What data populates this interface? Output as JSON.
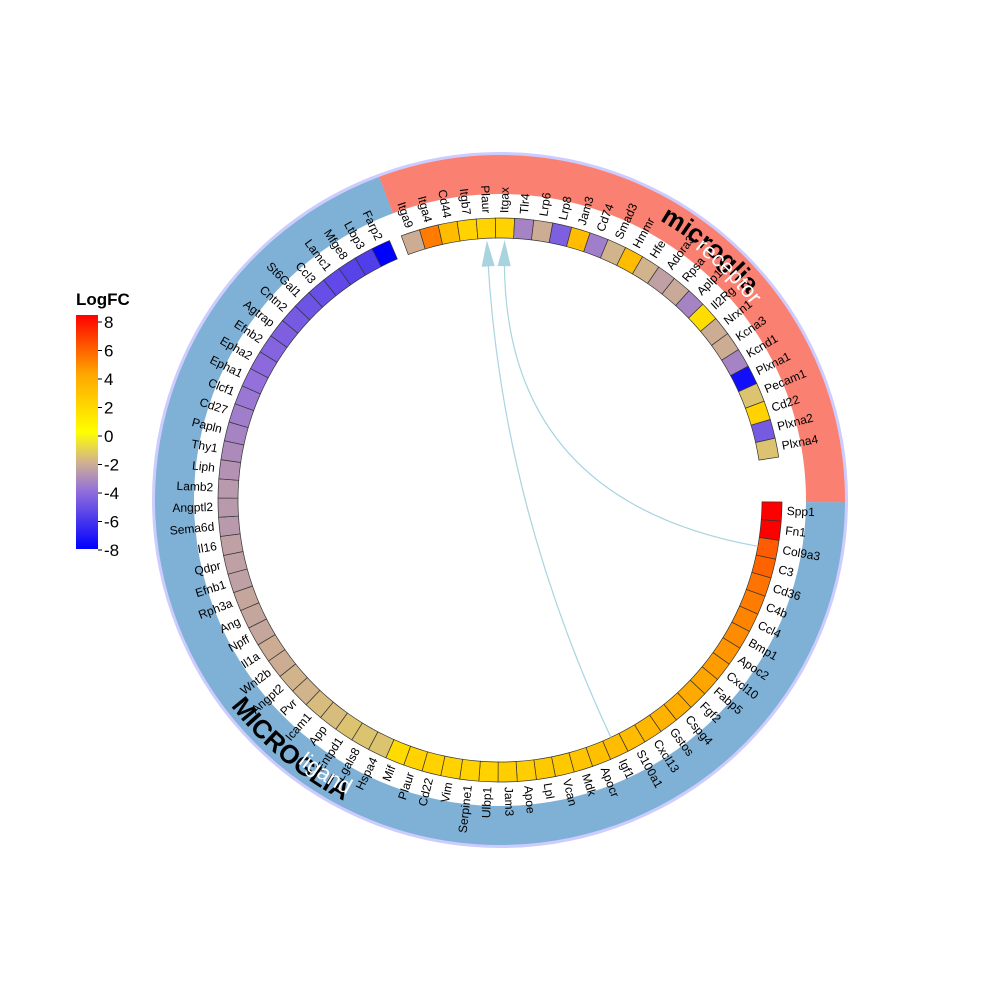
{
  "legend": {
    "title": "LogFC",
    "ticks": [
      "8",
      "6",
      "4",
      "2",
      "0",
      "-2",
      "-4",
      "-6",
      "-8"
    ],
    "gradient_stops": [
      {
        "value": 8,
        "color": "#ff0000"
      },
      {
        "value": 4,
        "color": "#ffa500"
      },
      {
        "value": 0,
        "color": "#ffff00"
      },
      {
        "value": -2,
        "color": "#d2b48c"
      },
      {
        "value": -4,
        "color": "#9370db"
      },
      {
        "value": -8,
        "color": "#0000ff"
      }
    ]
  },
  "outer_ring": {
    "color": "#ccccff",
    "labels": {
      "receptor_cell": "microglia",
      "ligand_cell": "MICROGLIA"
    }
  },
  "groups": {
    "receptor": {
      "label": "receptor",
      "color": "#fa8072"
    },
    "ligand": {
      "label": "ligand",
      "color": "#7fb0d5"
    }
  },
  "receptors": [
    {
      "gene": "Itga9",
      "logfc": -2.2
    },
    {
      "gene": "Itga4",
      "logfc": 5
    },
    {
      "gene": "Cd44",
      "logfc": 3
    },
    {
      "gene": "Itgb7",
      "logfc": 2
    },
    {
      "gene": "Plaur",
      "logfc": 2
    },
    {
      "gene": "Itgax",
      "logfc": 2
    },
    {
      "gene": "Tlr4",
      "logfc": -3.4
    },
    {
      "gene": "Lrp6",
      "logfc": -2.2
    },
    {
      "gene": "Lrp8",
      "logfc": -4.6
    },
    {
      "gene": "Jam3",
      "logfc": 3
    },
    {
      "gene": "Cd74",
      "logfc": -3.6
    },
    {
      "gene": "Smad3",
      "logfc": -2
    },
    {
      "gene": "Hmmr",
      "logfc": 3
    },
    {
      "gene": "Hfe",
      "logfc": -2
    },
    {
      "gene": "Adora3",
      "logfc": -2.6
    },
    {
      "gene": "Rpsa",
      "logfc": -2.3
    },
    {
      "gene": "Aplp1",
      "logfc": -3.4
    },
    {
      "gene": "Il2Rg",
      "logfc": 1.5
    },
    {
      "gene": "Nrxn1",
      "logfc": -2.2
    },
    {
      "gene": "Kcna3",
      "logfc": -2.2
    },
    {
      "gene": "Kcnd1",
      "logfc": -3.4
    },
    {
      "gene": "Plxna1",
      "logfc": -7.5
    },
    {
      "gene": "Pecam1",
      "logfc": -1.6
    },
    {
      "gene": "Cd22",
      "logfc": 2
    },
    {
      "gene": "Plxna2",
      "logfc": -4.8
    },
    {
      "gene": "Plxna4",
      "logfc": -1.6
    }
  ],
  "ligands": [
    {
      "gene": "Spp1",
      "logfc": 8
    },
    {
      "gene": "Fn1",
      "logfc": 8
    },
    {
      "gene": "Col9a3",
      "logfc": 5.8
    },
    {
      "gene": "C3",
      "logfc": 5.6
    },
    {
      "gene": "Cd36",
      "logfc": 5.2
    },
    {
      "gene": "C4b",
      "logfc": 5
    },
    {
      "gene": "Ccl4",
      "logfc": 4.8
    },
    {
      "gene": "Bmp1",
      "logfc": 4.6
    },
    {
      "gene": "Apoc2",
      "logfc": 4.4
    },
    {
      "gene": "Cxcl10",
      "logfc": 4.2
    },
    {
      "gene": "Fabp5",
      "logfc": 4
    },
    {
      "gene": "Fgf2",
      "logfc": 3.8
    },
    {
      "gene": "Cspg4",
      "logfc": 3.6
    },
    {
      "gene": "Gstos",
      "logfc": 3.4
    },
    {
      "gene": "Cxcl13",
      "logfc": 3.2
    },
    {
      "gene": "S100a1",
      "logfc": 3
    },
    {
      "gene": "Igf1",
      "logfc": 3
    },
    {
      "gene": "Apocr",
      "logfc": 2.8
    },
    {
      "gene": "Mdk",
      "logfc": 2.6
    },
    {
      "gene": "Vcan",
      "logfc": 2.4
    },
    {
      "gene": "Lpl",
      "logfc": 2.4
    },
    {
      "gene": "Apoe",
      "logfc": 2.2
    },
    {
      "gene": "Jam3",
      "logfc": 2.2
    },
    {
      "gene": "Ulbp1",
      "logfc": 2
    },
    {
      "gene": "Serpine1",
      "logfc": 2
    },
    {
      "gene": "Vim",
      "logfc": 2
    },
    {
      "gene": "Cd22",
      "logfc": 2
    },
    {
      "gene": "Plaur",
      "logfc": 2
    },
    {
      "gene": "Mif",
      "logfc": 1.6
    },
    {
      "gene": "Hspa4",
      "logfc": -1.6
    },
    {
      "gene": "Lgals8",
      "logfc": -1.6
    },
    {
      "gene": "Entpd1",
      "logfc": -1.6
    },
    {
      "gene": "App",
      "logfc": -1.8
    },
    {
      "gene": "Icam1",
      "logfc": -1.8
    },
    {
      "gene": "Pvr",
      "logfc": -2
    },
    {
      "gene": "Angpt2",
      "logfc": -2
    },
    {
      "gene": "Wnt2b",
      "logfc": -2.2
    },
    {
      "gene": "Il1a",
      "logfc": -2.2
    },
    {
      "gene": "Npff",
      "logfc": -2.4
    },
    {
      "gene": "Ang",
      "logfc": -2.4
    },
    {
      "gene": "Rph3a",
      "logfc": -2.4
    },
    {
      "gene": "Efnb1",
      "logfc": -2.6
    },
    {
      "gene": "Qdpr",
      "logfc": -2.6
    },
    {
      "gene": "Il16",
      "logfc": -2.6
    },
    {
      "gene": "Sema6d",
      "logfc": -2.8
    },
    {
      "gene": "Angptl2",
      "logfc": -2.8
    },
    {
      "gene": "Lamb2",
      "logfc": -2.8
    },
    {
      "gene": "Liph",
      "logfc": -3
    },
    {
      "gene": "Thy1",
      "logfc": -3.2
    },
    {
      "gene": "Papln",
      "logfc": -3.4
    },
    {
      "gene": "Cd27",
      "logfc": -3.6
    },
    {
      "gene": "Clcf1",
      "logfc": -3.8
    },
    {
      "gene": "Epha1",
      "logfc": -4
    },
    {
      "gene": "Epha2",
      "logfc": -4.2
    },
    {
      "gene": "Efnb2",
      "logfc": -4.4
    },
    {
      "gene": "Agtrap",
      "logfc": -4.6
    },
    {
      "gene": "Cntn2",
      "logfc": -4.8
    },
    {
      "gene": "St6Gal1",
      "logfc": -5
    },
    {
      "gene": "Ccl3",
      "logfc": -5.2
    },
    {
      "gene": "Lamc1",
      "logfc": -5.4
    },
    {
      "gene": "Mfge8",
      "logfc": -5.6
    },
    {
      "gene": "Ltbp3",
      "logfc": -5.8
    },
    {
      "gene": "Farp2",
      "logfc": -8
    }
  ],
  "links": [
    {
      "from": "Col9a3",
      "to": "Itgax",
      "color": "#a8d4e0"
    },
    {
      "from": "Igf1",
      "to": "Plaur",
      "color": "#a8d4e0"
    }
  ]
}
